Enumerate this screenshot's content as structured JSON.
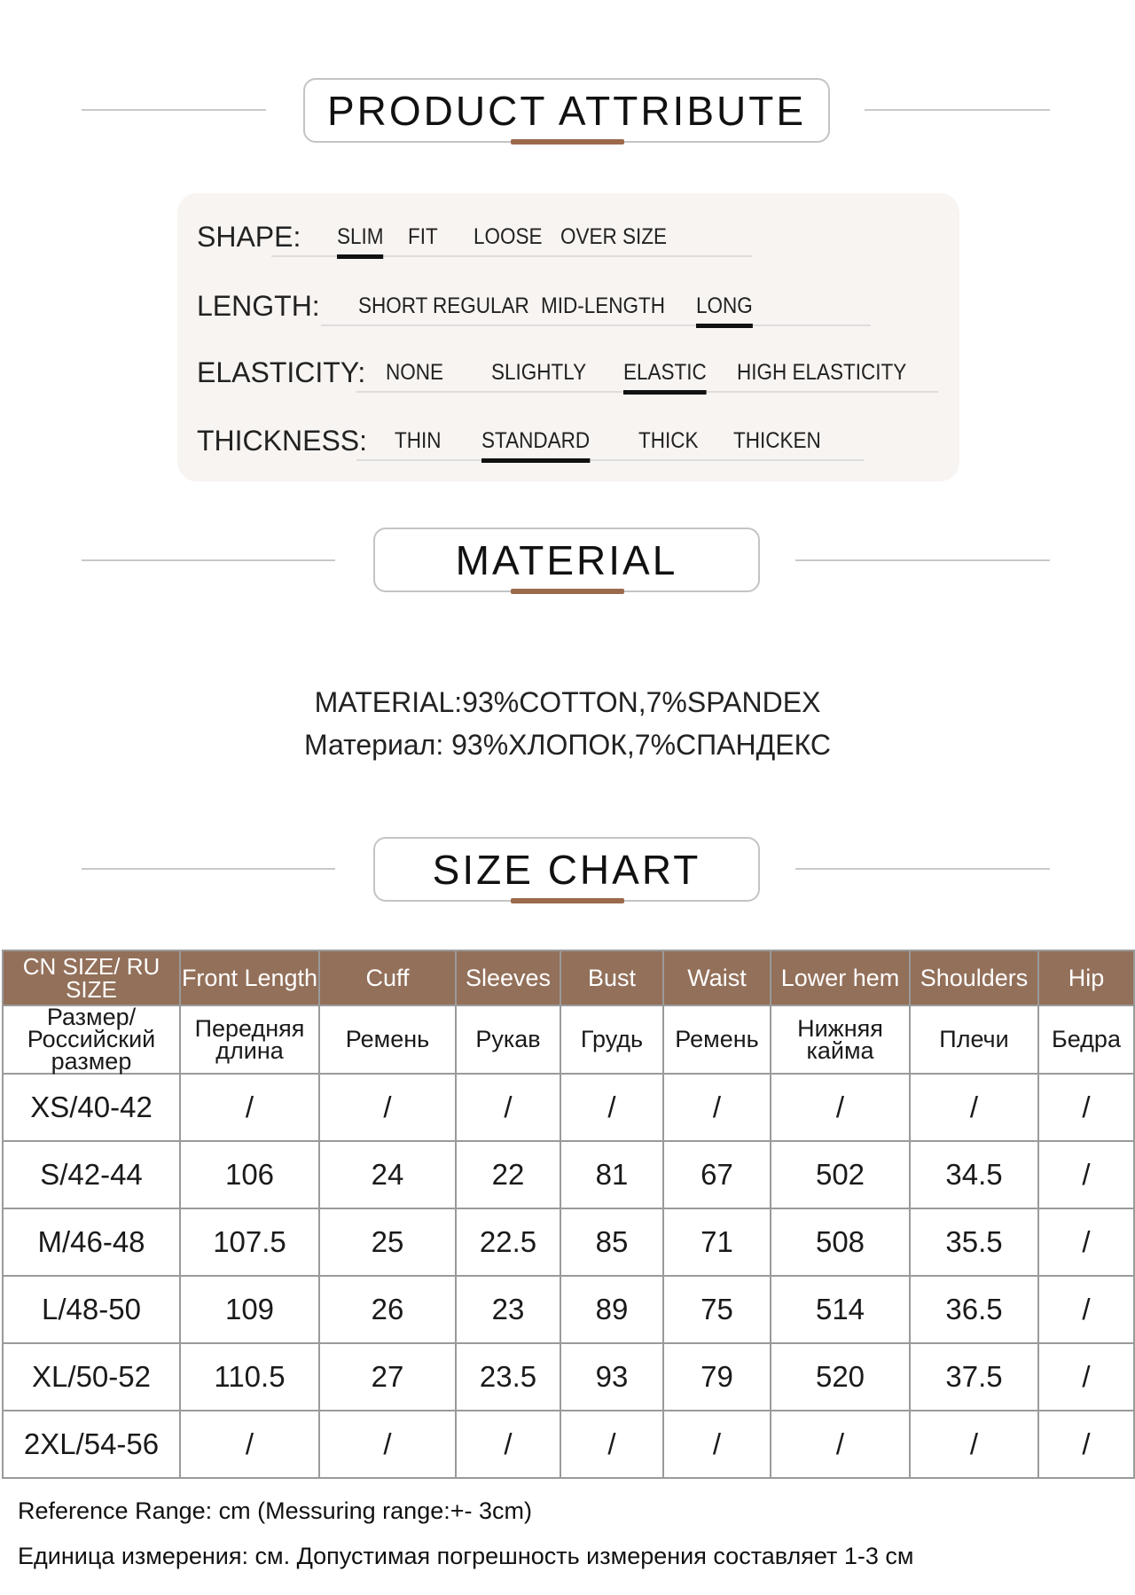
{
  "headers": {
    "attribute": "PRODUCT ATTRIBUTE",
    "material": "MATERIAL",
    "size_chart": "SIZE CHART"
  },
  "accent_color": "#93705a",
  "attributes": [
    {
      "label": "SHAPE:",
      "options": [
        "SLIM",
        "FIT",
        "LOOSE",
        "OVER SIZE"
      ],
      "selected": "SLIM"
    },
    {
      "label": "LENGTH:",
      "options": [
        "SHORT",
        "REGULAR",
        "MID-LENGTH",
        "LONG"
      ],
      "selected": "LONG"
    },
    {
      "label": "ELASTICITY:",
      "options": [
        "NONE",
        "SLIGHTLY",
        "ELASTIC",
        "HIGH ELASTICITY"
      ],
      "selected": "ELASTIC"
    },
    {
      "label": "THICKNESS:",
      "options": [
        "THIN",
        "STANDARD",
        "THICK",
        "THICKEN"
      ],
      "selected": "STANDARD"
    }
  ],
  "material": {
    "en": "MATERIAL:93%COTTON,7%SPANDEX",
    "ru": "Материал: 93%ХЛОПОК,7%СПАНДЕКС"
  },
  "table": {
    "header_en": [
      "CN SIZE/ RU SIZE",
      "Front Length",
      "Cuff",
      "Sleeves",
      "Bust",
      "Waist",
      "Lower hem",
      "Shoulders",
      "Hip"
    ],
    "header_ru": [
      "Размер/ Российский размер",
      "Передняя длина",
      "Ремень",
      "Рукав",
      "Грудь",
      "Ремень",
      "Нижняя кайма",
      "Плечи",
      "Бедра"
    ],
    "rows": [
      [
        "XS/40-42",
        "/",
        "/",
        "/",
        "/",
        "/",
        "/",
        "/",
        "/"
      ],
      [
        "S/42-44",
        "106",
        "24",
        "22",
        "81",
        "67",
        "502",
        "34.5",
        "/"
      ],
      [
        "M/46-48",
        "107.5",
        "25",
        "22.5",
        "85",
        "71",
        "508",
        "35.5",
        "/"
      ],
      [
        "L/48-50",
        "109",
        "26",
        "23",
        "89",
        "75",
        "514",
        "36.5",
        "/"
      ],
      [
        "XL/50-52",
        "110.5",
        "27",
        "23.5",
        "93",
        "79",
        "520",
        "37.5",
        "/"
      ],
      [
        "2XL/54-56",
        "/",
        "/",
        "/",
        "/",
        "/",
        "/",
        "/",
        "/"
      ]
    ]
  },
  "footer": {
    "en": "Reference Range: cm (Messuring range:+- 3cm)",
    "ru": "Единица измерения: см. Допустимая погрешность измерения составляет 1-3 см"
  }
}
